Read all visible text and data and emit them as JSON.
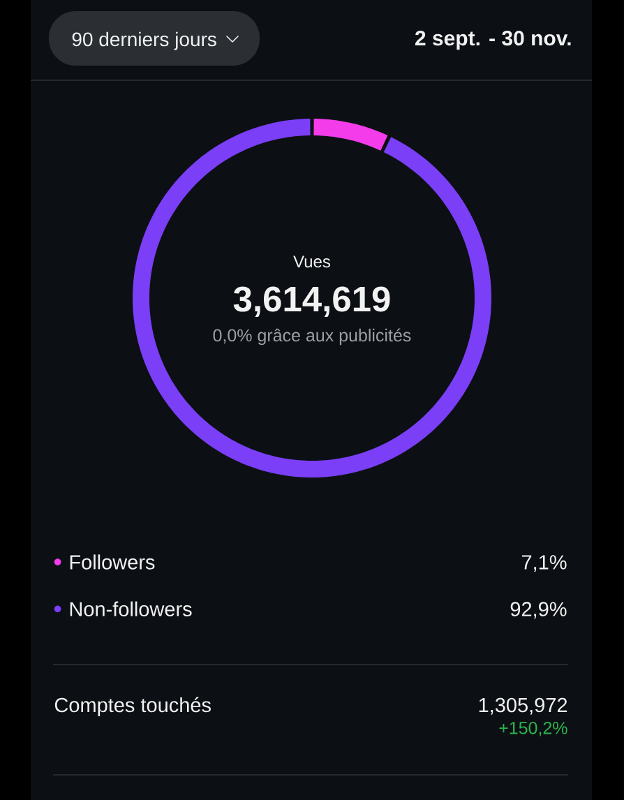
{
  "chart_data": {
    "type": "donut",
    "title": "Vues",
    "categories": [
      "Followers",
      "Non-followers"
    ],
    "values": [
      7.1,
      92.9
    ],
    "colors": [
      "#f43ceb",
      "#7b3ff7"
    ],
    "value_labels": [
      "7,1%",
      "92,9%"
    ],
    "legend": "bottom",
    "annotations": [
      "90 derniers jours",
      "2 sept. - 30 nov.",
      "3,614,619",
      "0,0% grâce aux publicités",
      "Comptes touchés",
      "1,305,972",
      "+150,2%"
    ]
  }
}
